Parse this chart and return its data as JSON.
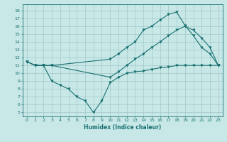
{
  "title": "",
  "xlabel": "Humidex (Indice chaleur)",
  "bg_color": "#c8e8e8",
  "grid_color": "#a0c8c8",
  "line_color": "#1a7070",
  "xlim": [
    -0.5,
    23.5
  ],
  "ylim": [
    4.5,
    18.8
  ],
  "xticks": [
    0,
    1,
    2,
    3,
    4,
    5,
    6,
    7,
    8,
    9,
    10,
    11,
    12,
    13,
    14,
    15,
    16,
    17,
    18,
    19,
    20,
    21,
    22,
    23
  ],
  "yticks": [
    5,
    6,
    7,
    8,
    9,
    10,
    11,
    12,
    13,
    14,
    15,
    16,
    17,
    18
  ],
  "line1_x": [
    0,
    1,
    2,
    3,
    10,
    11,
    12,
    13,
    14,
    15,
    16,
    17,
    18,
    19,
    20,
    21,
    22,
    23
  ],
  "line1_y": [
    11.5,
    11.0,
    11.0,
    11.0,
    11.8,
    12.5,
    13.3,
    14.0,
    15.5,
    16.0,
    16.8,
    17.5,
    17.8,
    16.1,
    14.8,
    13.3,
    12.5,
    11.0
  ],
  "line2_x": [
    0,
    1,
    2,
    3,
    10,
    11,
    12,
    13,
    14,
    15,
    16,
    17,
    18,
    19,
    20,
    21,
    22,
    23
  ],
  "line2_y": [
    11.5,
    11.0,
    11.0,
    11.0,
    9.5,
    10.2,
    11.0,
    11.8,
    12.5,
    13.3,
    14.0,
    14.8,
    15.5,
    16.0,
    15.5,
    14.5,
    13.3,
    11.0
  ],
  "line3_x": [
    0,
    1,
    2,
    3,
    4,
    5,
    6,
    7,
    8,
    9,
    10,
    11,
    12,
    13,
    14,
    15,
    16,
    17,
    18,
    19,
    20,
    21,
    22,
    23
  ],
  "line3_y": [
    11.5,
    11.0,
    11.0,
    9.0,
    8.5,
    8.0,
    7.0,
    6.5,
    5.0,
    6.5,
    8.8,
    9.5,
    10.0,
    10.2,
    10.3,
    10.5,
    10.7,
    10.8,
    11.0,
    11.0,
    11.0,
    11.0,
    11.0,
    11.0
  ],
  "xlabel_fontsize": 5.5,
  "tick_fontsize": 4.5,
  "marker_size": 2.5,
  "line_width": 0.8
}
